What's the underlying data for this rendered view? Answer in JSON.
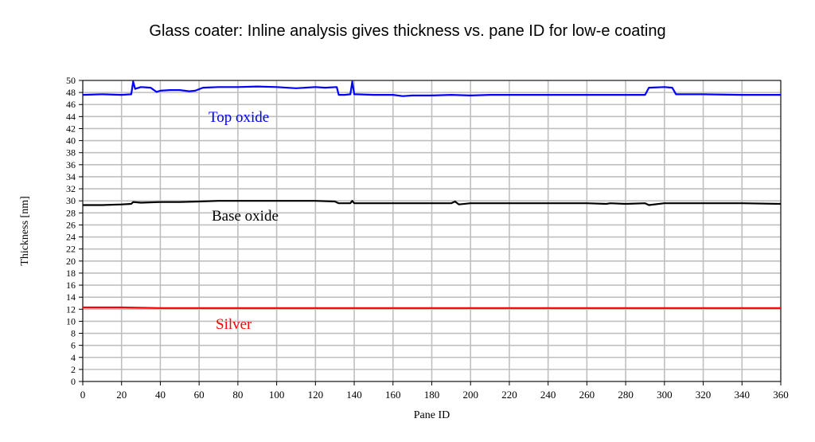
{
  "chart_data": {
    "type": "line",
    "title": "Glass coater: Inline analysis gives thickness vs. pane ID for low-e coating",
    "xlabel": "Pane ID",
    "ylabel": "Thickness [nm]",
    "xlim": [
      0,
      360
    ],
    "ylim": [
      0,
      50
    ],
    "xticks": [
      0,
      20,
      40,
      60,
      80,
      100,
      120,
      140,
      160,
      180,
      200,
      220,
      240,
      260,
      280,
      300,
      320,
      340,
      360
    ],
    "yticks": [
      0,
      2,
      4,
      6,
      8,
      10,
      12,
      14,
      16,
      18,
      20,
      22,
      24,
      26,
      28,
      30,
      32,
      34,
      36,
      38,
      40,
      42,
      44,
      46,
      48,
      50
    ],
    "grid": true,
    "legend": "inline labels",
    "series": [
      {
        "name": "Top oxide",
        "color": "#0000ff",
        "x": [
          0,
          10,
          20,
          25,
          26,
          27,
          30,
          35,
          38,
          40,
          45,
          50,
          55,
          58,
          62,
          70,
          80,
          90,
          100,
          110,
          120,
          125,
          131,
          132,
          135,
          138,
          139,
          140,
          141,
          150,
          160,
          165,
          170,
          180,
          190,
          200,
          210,
          220,
          240,
          260,
          280,
          290,
          292,
          300,
          304,
          306,
          310,
          320,
          340,
          360
        ],
        "y": [
          47.6,
          47.7,
          47.6,
          47.7,
          49.8,
          48.6,
          48.9,
          48.8,
          48.1,
          48.3,
          48.4,
          48.4,
          48.2,
          48.3,
          48.8,
          48.9,
          48.9,
          49.0,
          48.9,
          48.7,
          48.9,
          48.8,
          48.9,
          47.6,
          47.6,
          47.7,
          49.8,
          47.7,
          47.7,
          47.6,
          47.6,
          47.4,
          47.5,
          47.5,
          47.6,
          47.5,
          47.6,
          47.6,
          47.6,
          47.6,
          47.6,
          47.6,
          48.8,
          48.9,
          48.8,
          47.7,
          47.7,
          47.7,
          47.6,
          47.6
        ]
      },
      {
        "name": "Base oxide",
        "color": "#000000",
        "x": [
          0,
          10,
          20,
          25,
          26,
          30,
          40,
          50,
          60,
          70,
          80,
          90,
          100,
          110,
          120,
          130,
          132,
          138,
          139,
          140,
          150,
          160,
          170,
          180,
          190,
          192,
          194,
          200,
          220,
          240,
          260,
          270,
          272,
          280,
          290,
          292,
          300,
          320,
          340,
          360
        ],
        "y": [
          29.3,
          29.3,
          29.4,
          29.5,
          29.8,
          29.7,
          29.8,
          29.8,
          29.9,
          30.0,
          30.0,
          30.0,
          30.0,
          30.0,
          30.0,
          29.9,
          29.6,
          29.6,
          30.0,
          29.6,
          29.6,
          29.6,
          29.6,
          29.6,
          29.6,
          29.9,
          29.4,
          29.6,
          29.6,
          29.6,
          29.6,
          29.5,
          29.6,
          29.5,
          29.6,
          29.3,
          29.6,
          29.6,
          29.6,
          29.5
        ]
      },
      {
        "name": "Silver",
        "color": "#ff0000",
        "x": [
          0,
          20,
          40,
          60,
          80,
          100,
          120,
          140,
          160,
          180,
          200,
          220,
          240,
          260,
          280,
          300,
          320,
          340,
          360
        ],
        "y": [
          12.3,
          12.3,
          12.2,
          12.2,
          12.2,
          12.2,
          12.2,
          12.2,
          12.2,
          12.2,
          12.2,
          12.2,
          12.2,
          12.2,
          12.2,
          12.2,
          12.2,
          12.2,
          12.2
        ]
      }
    ]
  }
}
